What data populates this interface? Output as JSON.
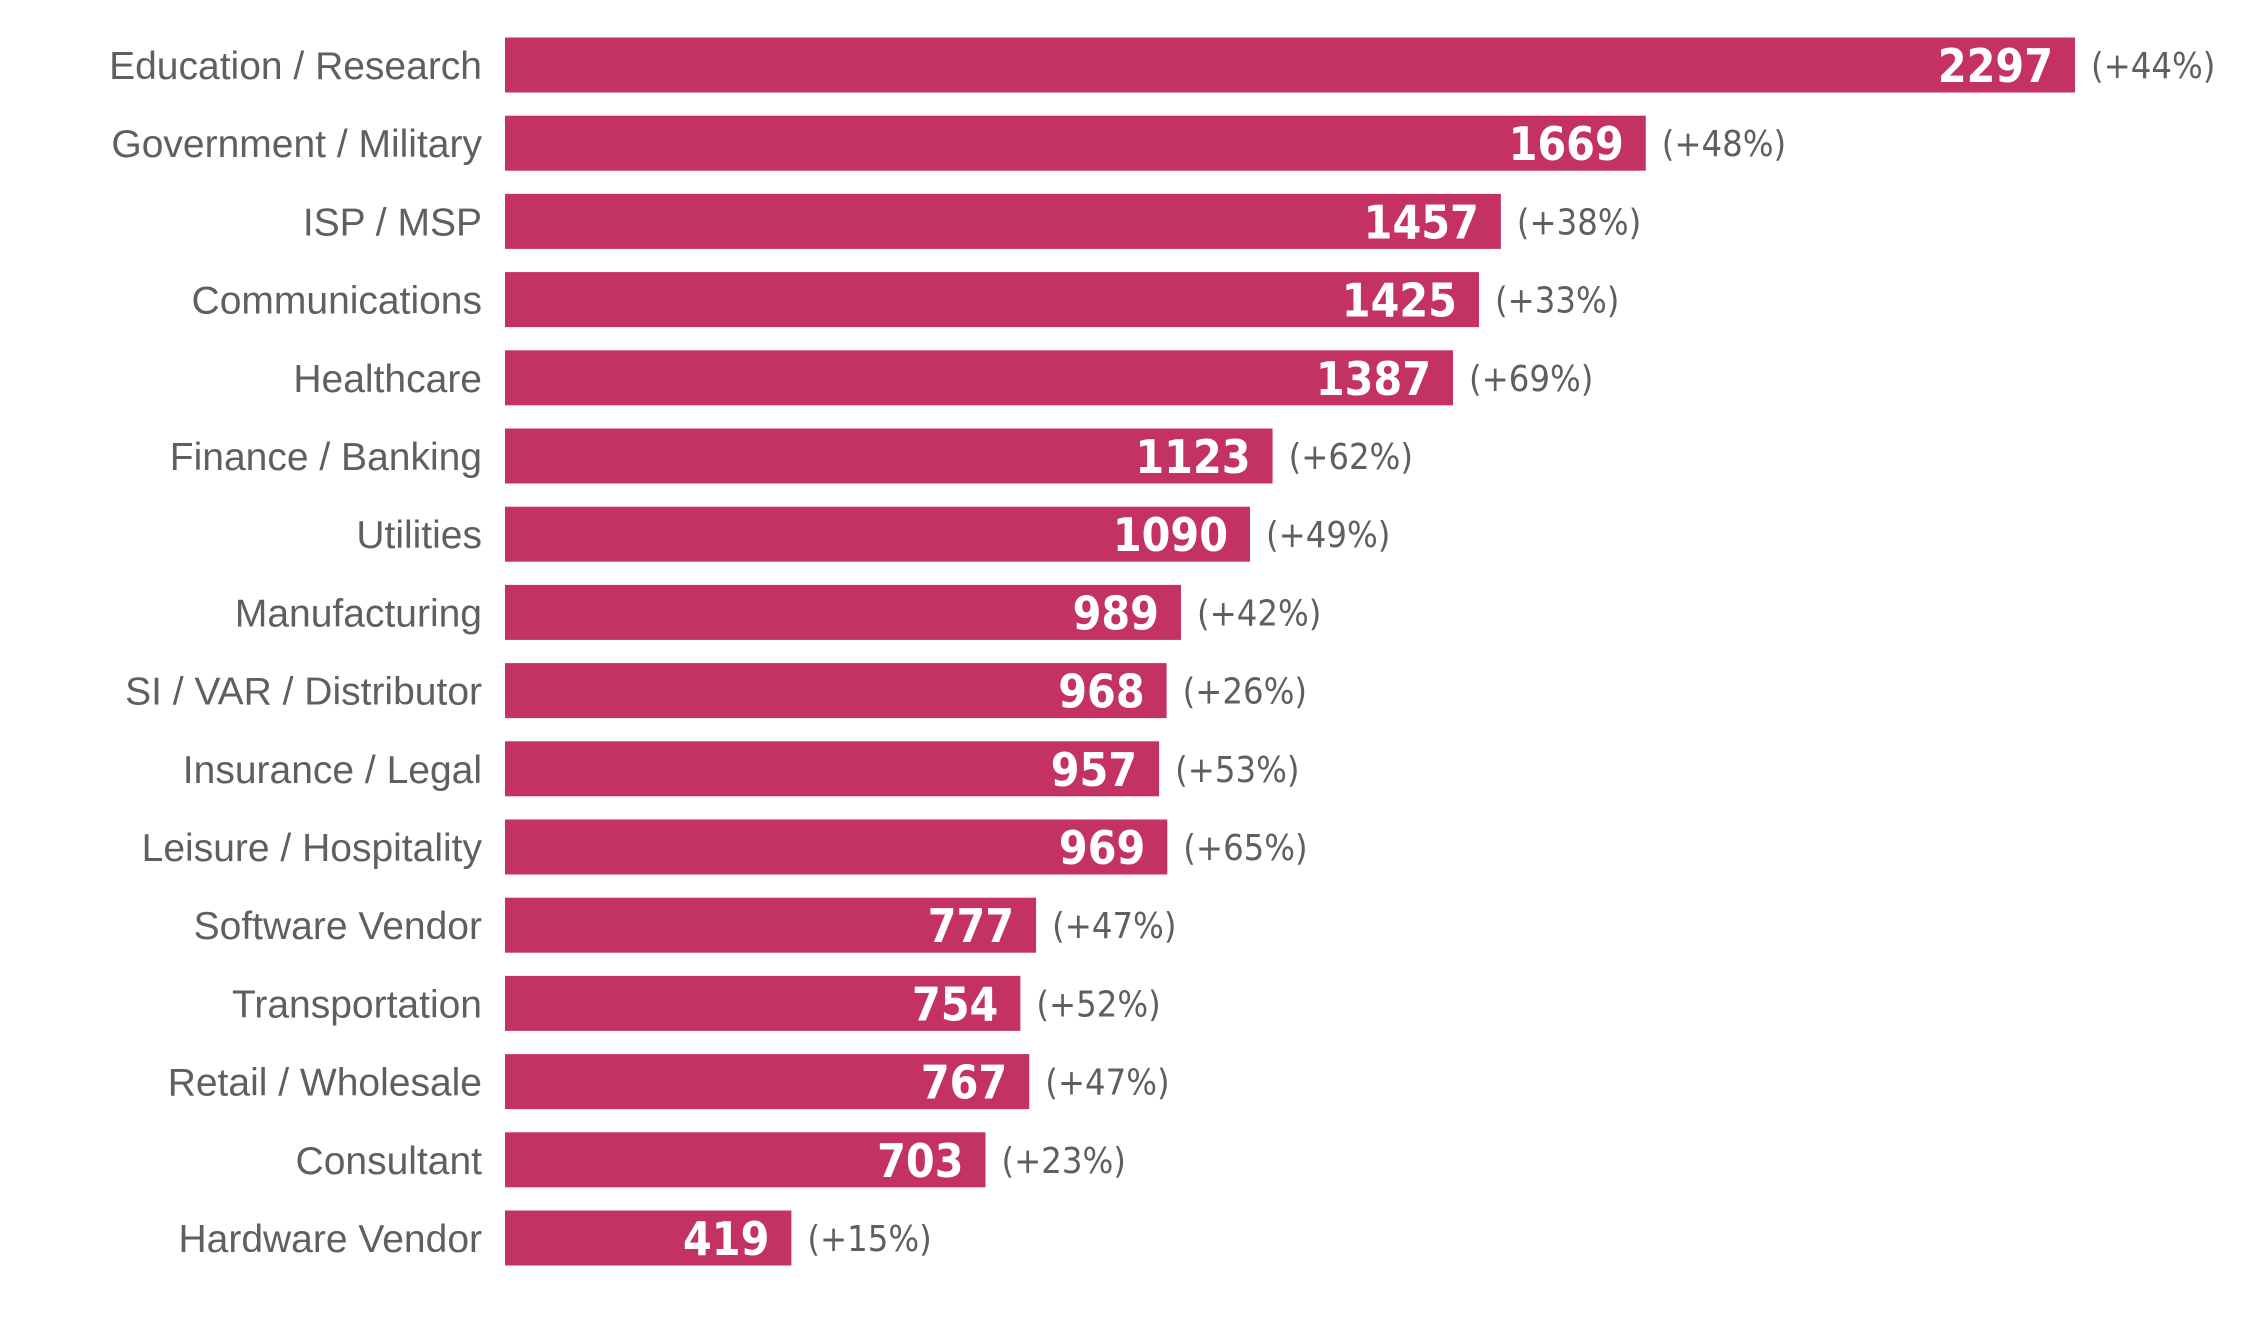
{
  "chart_data": {
    "type": "bar",
    "orientation": "horizontal",
    "title": "",
    "xlabel": "",
    "ylabel": "",
    "categories": [
      "Education / Research",
      "Government / Military",
      "ISP / MSP",
      "Communications",
      "Healthcare",
      "Finance / Banking",
      "Utilities",
      "Manufacturing",
      "SI / VAR / Distributor",
      "Insurance / Legal",
      "Leisure / Hospitality",
      "Software Vendor",
      "Transportation",
      "Retail / Wholesale",
      "Consultant",
      "Hardware Vendor"
    ],
    "values": [
      2297,
      1669,
      1457,
      1425,
      1387,
      1123,
      1090,
      989,
      968,
      957,
      969,
      777,
      754,
      767,
      703,
      419
    ],
    "change_labels": [
      "(+44%)",
      "(+48%)",
      "(+38%)",
      "(+33%)",
      "(+69%)",
      "(+62%)",
      "(+49%)",
      "(+42%)",
      "(+26%)",
      "(+53%)",
      "(+65%)",
      "(+47%)",
      "(+52%)",
      "(+47%)",
      "(+23%)",
      "(+15%)"
    ],
    "xlim": [
      0,
      2297
    ],
    "grid": false,
    "legend": "none",
    "bar_color": "#c43265"
  }
}
